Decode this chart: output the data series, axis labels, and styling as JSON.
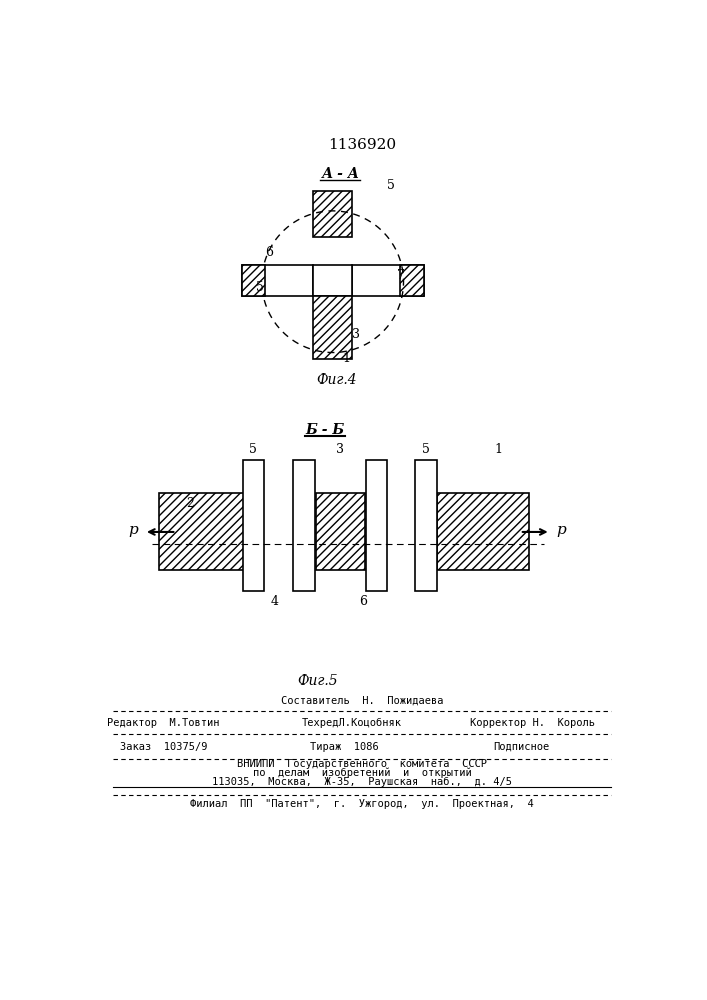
{
  "title": "1136920",
  "fig4_label": "А - А",
  "fig4_caption": "Фиг.4",
  "fig5_label": "Б - Б",
  "fig5_caption": "Фиг.5",
  "footer_line1": "Составитель  Н.  Пожидаева",
  "footer_line2_left": "Редактор  М.Товтин",
  "footer_line2_mid": "ТехредЛ.Коцобняк",
  "footer_line2_right": "Корректор Н.  Король",
  "footer_line3_left": "Заказ  10375/9",
  "footer_line3_mid": "Тираж  1086",
  "footer_line3_right": "Подписное",
  "footer_line4": "ВНИИПИ  Государственного  комитета  СССР",
  "footer_line5": "по  делам  изобретений  и  открытий",
  "footer_line6": "113035,  Москва,  Ж-35,  Раушская  наб.,  д. 4/5",
  "footer_line7": "Филиал  ПП  \"Патент\",  г.  Ужгород,  ул.  Проектная,  4",
  "hatch_pattern": "////",
  "bg_color": "#ffffff",
  "line_color": "#000000",
  "hatch_color": "#000000"
}
